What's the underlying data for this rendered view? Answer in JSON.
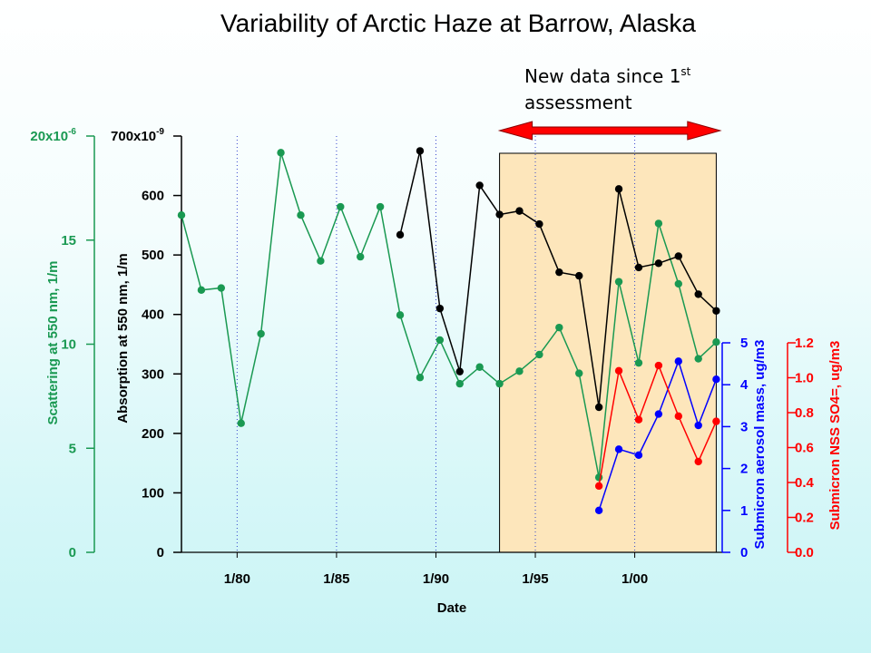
{
  "title": "Variability of Arctic Haze at Barrow, Alaska",
  "annotation": {
    "line1": "New data since 1",
    "sup": "st",
    "line2": "assessment",
    "arrow_range": [
      1993.2,
      2004.3
    ],
    "shaded_range": [
      1993.2,
      2004.1
    ],
    "shade_color": "#fde6bb",
    "arrow_color": "#ff0000"
  },
  "chart_data": {
    "type": "line",
    "xlabel": "Date",
    "xlim": [
      1977.2,
      2004.4
    ],
    "x_ticks": [
      1980,
      1985,
      1990,
      1995,
      2000
    ],
    "x_tick_labels": [
      "1/80",
      "1/85",
      "1/90",
      "1/95",
      "1/00"
    ],
    "axes": {
      "scattering": {
        "label": "Scattering at 550 nm, 1/m",
        "color": "#1a9952",
        "ylim": [
          0,
          20
        ],
        "ticks": [
          "0",
          "5",
          "10",
          "15",
          "20x10"
        ],
        "top_tick_exp": "-6"
      },
      "absorption": {
        "label": "Absorption at 550 nm, 1/m",
        "color": "#000000",
        "ylim": [
          0,
          700
        ],
        "ticks": [
          "0",
          "100",
          "200",
          "300",
          "400",
          "500",
          "600",
          "700x10"
        ],
        "top_tick_exp": "-9"
      },
      "mass": {
        "label": "Submicron aerosol mass, ug/m3",
        "color": "#0000ff",
        "ylim": [
          0,
          6.3
        ],
        "ticks": [
          "0",
          "1",
          "2",
          "3",
          "4",
          "5"
        ]
      },
      "sulfate": {
        "label": "Submicron NSS SO4=, ug/m3",
        "color": "#ff0000",
        "ylim": [
          0,
          1.65
        ],
        "ticks": [
          "0.0",
          "0.2",
          "0.4",
          "0.6",
          "0.8",
          "1.0",
          "1.2"
        ]
      }
    },
    "series": [
      {
        "axis": "scattering",
        "x": [
          1977.2,
          1978.2,
          1979.2,
          1980.2,
          1981.2,
          1982.2,
          1983.2,
          1984.2,
          1985.2,
          1986.2,
          1987.2,
          1988.2,
          1989.2,
          1990.2,
          1991.2,
          1992.2,
          1993.2,
          1994.2,
          1995.2,
          1996.2,
          1997.2,
          1998.2,
          1999.2,
          2000.2,
          2001.2,
          2002.2,
          2003.2,
          2004.1
        ],
        "values": [
          16.2,
          12.6,
          12.7,
          6.2,
          10.5,
          19.2,
          16.2,
          14.0,
          16.6,
          14.2,
          16.6,
          11.4,
          8.4,
          10.2,
          8.1,
          8.9,
          8.1,
          8.7,
          9.5,
          10.8,
          8.6,
          3.6,
          13.0,
          9.1,
          15.8,
          12.9,
          9.3,
          10.1
        ]
      },
      {
        "axis": "absorption",
        "x": [
          1988.2,
          1989.2,
          1990.2,
          1991.2,
          1992.2,
          1993.2,
          1994.2,
          1995.2,
          1996.2,
          1997.2,
          1998.2,
          1999.2,
          2000.2,
          2001.2,
          2002.2,
          2003.2,
          2004.1
        ],
        "values": [
          534,
          675,
          410,
          304,
          617,
          568,
          574,
          552,
          471,
          465,
          244,
          611,
          479,
          486,
          498,
          434,
          406
        ]
      },
      {
        "axis": "mass",
        "x": [
          1998.2,
          1999.2,
          2000.2,
          2001.2,
          2002.2,
          2003.2,
          2004.1
        ],
        "values": [
          1.0,
          2.46,
          2.32,
          3.3,
          4.56,
          3.03,
          4.13
        ]
      },
      {
        "axis": "sulfate",
        "x": [
          1998.2,
          1999.2,
          2000.2,
          2001.2,
          2002.2,
          2003.2,
          2004.1
        ],
        "values": [
          0.38,
          1.04,
          0.76,
          1.07,
          0.78,
          0.52,
          0.75
        ]
      }
    ]
  }
}
